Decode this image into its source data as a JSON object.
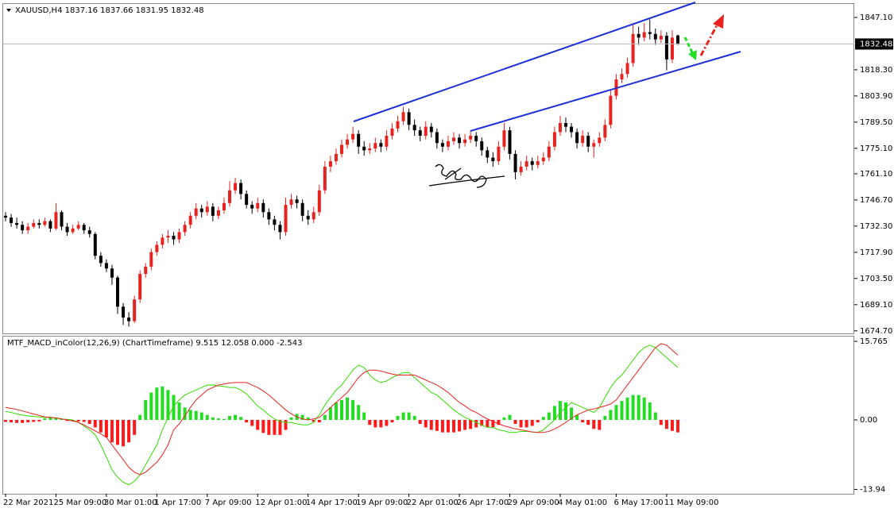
{
  "chart_data": [
    {
      "type": "candlestick",
      "title": "XAUUSD,H4  1837.16 1837.66 1831.95 1832.48",
      "up_color": "#e8231f",
      "down_color": "#000000",
      "ylim": [
        1673.3,
        1854.5
      ],
      "yticks": [
        {
          "value": 1847.1,
          "label": "1847.10"
        },
        {
          "value": 1818.3,
          "label": "1818.30"
        },
        {
          "value": 1803.9,
          "label": "1803.90"
        },
        {
          "value": 1789.5,
          "label": "1789.50"
        },
        {
          "value": 1775.1,
          "label": "1775.10"
        },
        {
          "value": 1761.1,
          "label": "1761.10"
        },
        {
          "value": 1746.7,
          "label": "1746.70"
        },
        {
          "value": 1732.3,
          "label": "1732.30"
        },
        {
          "value": 1717.9,
          "label": "1717.90"
        },
        {
          "value": 1703.5,
          "label": "1703.50"
        },
        {
          "value": 1689.1,
          "label": "1689.10"
        },
        {
          "value": 1674.7,
          "label": "1674.70"
        }
      ],
      "categories": [
        "22 Mar 2021",
        null,
        null,
        null,
        null,
        null,
        null,
        null,
        null,
        "25 Mar 09:00",
        null,
        null,
        null,
        null,
        null,
        null,
        null,
        null,
        "30 Mar 01:00",
        null,
        null,
        null,
        null,
        null,
        null,
        null,
        null,
        "1 Apr 17:00",
        null,
        null,
        null,
        null,
        null,
        null,
        null,
        null,
        "7 Apr 09:00",
        null,
        null,
        null,
        null,
        null,
        null,
        null,
        null,
        "12 Apr 01:00",
        null,
        null,
        null,
        null,
        null,
        null,
        null,
        null,
        "14 Apr 17:00",
        null,
        null,
        null,
        null,
        null,
        null,
        null,
        null,
        "19 Apr 09:00",
        null,
        null,
        null,
        null,
        null,
        null,
        null,
        null,
        "22 Apr 01:00",
        null,
        null,
        null,
        null,
        null,
        null,
        null,
        null,
        "26 Apr 17:00",
        null,
        null,
        null,
        null,
        null,
        null,
        null,
        null,
        "29 Apr 09:00",
        null,
        null,
        null,
        null,
        null,
        null,
        null,
        null,
        "4 May 01:00",
        null,
        null,
        null,
        null,
        null,
        null,
        null,
        null,
        null,
        "6 May 17:00",
        null,
        null,
        null,
        null,
        null,
        null,
        null,
        null,
        "11 May 09:00",
        null,
        null
      ],
      "ohlc": [
        [
          1738,
          1740,
          1735,
          1737
        ],
        [
          1737,
          1739,
          1732,
          1734
        ],
        [
          1734,
          1737,
          1731,
          1733
        ],
        [
          1733,
          1735,
          1728,
          1730
        ],
        [
          1730,
          1734,
          1728,
          1732
        ],
        [
          1732,
          1736,
          1731,
          1734
        ],
        [
          1734,
          1736,
          1731,
          1733
        ],
        [
          1733,
          1737,
          1732,
          1735
        ],
        [
          1735,
          1736,
          1729,
          1731
        ],
        [
          1731,
          1745,
          1730,
          1740
        ],
        [
          1740,
          1741,
          1730,
          1732
        ],
        [
          1732,
          1734,
          1727,
          1729
        ],
        [
          1729,
          1733,
          1728,
          1731
        ],
        [
          1731,
          1735,
          1730,
          1733
        ],
        [
          1733,
          1734,
          1728,
          1730
        ],
        [
          1730,
          1732,
          1726,
          1728
        ],
        [
          1728,
          1729,
          1714,
          1716
        ],
        [
          1716,
          1718,
          1710,
          1712
        ],
        [
          1712,
          1714,
          1707,
          1709
        ],
        [
          1709,
          1711,
          1700,
          1704
        ],
        [
          1704,
          1705,
          1684,
          1688
        ],
        [
          1688,
          1690,
          1678,
          1682
        ],
        [
          1682,
          1685,
          1677,
          1680
        ],
        [
          1680,
          1694,
          1679,
          1692
        ],
        [
          1692,
          1708,
          1690,
          1706
        ],
        [
          1706,
          1712,
          1704,
          1710
        ],
        [
          1710,
          1720,
          1708,
          1718
        ],
        [
          1718,
          1724,
          1716,
          1722
        ],
        [
          1722,
          1728,
          1720,
          1726
        ],
        [
          1726,
          1730,
          1723,
          1727
        ],
        [
          1727,
          1729,
          1722,
          1725
        ],
        [
          1725,
          1731,
          1723,
          1729
        ],
        [
          1729,
          1735,
          1727,
          1733
        ],
        [
          1733,
          1740,
          1731,
          1738
        ],
        [
          1738,
          1745,
          1736,
          1742
        ],
        [
          1742,
          1744,
          1737,
          1740
        ],
        [
          1740,
          1746,
          1738,
          1743
        ],
        [
          1743,
          1745,
          1735,
          1738
        ],
        [
          1738,
          1743,
          1736,
          1741
        ],
        [
          1741,
          1748,
          1739,
          1745
        ],
        [
          1745,
          1757,
          1743,
          1752
        ],
        [
          1752,
          1759,
          1750,
          1756
        ],
        [
          1756,
          1758,
          1747,
          1750
        ],
        [
          1750,
          1752,
          1742,
          1744
        ],
        [
          1744,
          1746,
          1739,
          1742
        ],
        [
          1742,
          1748,
          1740,
          1745
        ],
        [
          1745,
          1747,
          1737,
          1740
        ],
        [
          1740,
          1742,
          1733,
          1736
        ],
        [
          1736,
          1738,
          1730,
          1733
        ],
        [
          1733,
          1735,
          1725,
          1729
        ],
        [
          1729,
          1748,
          1727,
          1744
        ],
        [
          1744,
          1750,
          1742,
          1747
        ],
        [
          1747,
          1749,
          1742,
          1745
        ],
        [
          1745,
          1747,
          1735,
          1738
        ],
        [
          1738,
          1741,
          1733,
          1736
        ],
        [
          1736,
          1743,
          1734,
          1740
        ],
        [
          1740,
          1755,
          1738,
          1752
        ],
        [
          1752,
          1768,
          1750,
          1765
        ],
        [
          1765,
          1771,
          1762,
          1768
        ],
        [
          1768,
          1775,
          1766,
          1772
        ],
        [
          1772,
          1780,
          1770,
          1777
        ],
        [
          1777,
          1783,
          1775,
          1780
        ],
        [
          1780,
          1787,
          1778,
          1783
        ],
        [
          1783,
          1785,
          1772,
          1776
        ],
        [
          1776,
          1779,
          1771,
          1774
        ],
        [
          1774,
          1778,
          1772,
          1775
        ],
        [
          1775,
          1781,
          1773,
          1778
        ],
        [
          1778,
          1780,
          1773,
          1776
        ],
        [
          1776,
          1785,
          1774,
          1782
        ],
        [
          1782,
          1789,
          1780,
          1786
        ],
        [
          1786,
          1793,
          1784,
          1790
        ],
        [
          1790,
          1798,
          1788,
          1795
        ],
        [
          1795,
          1797,
          1785,
          1788
        ],
        [
          1788,
          1791,
          1782,
          1785
        ],
        [
          1785,
          1787,
          1779,
          1782
        ],
        [
          1782,
          1790,
          1780,
          1787
        ],
        [
          1787,
          1789,
          1781,
          1784
        ],
        [
          1784,
          1786,
          1775,
          1778
        ],
        [
          1778,
          1780,
          1773,
          1776
        ],
        [
          1776,
          1782,
          1774,
          1779
        ],
        [
          1779,
          1784,
          1777,
          1781
        ],
        [
          1781,
          1783,
          1775,
          1778
        ],
        [
          1778,
          1783,
          1776,
          1780
        ],
        [
          1780,
          1785,
          1778,
          1782
        ],
        [
          1782,
          1784,
          1776,
          1779
        ],
        [
          1779,
          1781,
          1771,
          1774
        ],
        [
          1774,
          1776,
          1767,
          1770
        ],
        [
          1770,
          1773,
          1765,
          1768
        ],
        [
          1768,
          1779,
          1766,
          1776
        ],
        [
          1776,
          1789,
          1774,
          1785
        ],
        [
          1785,
          1787,
          1769,
          1772
        ],
        [
          1772,
          1774,
          1758,
          1762
        ],
        [
          1762,
          1768,
          1760,
          1765
        ],
        [
          1765,
          1771,
          1763,
          1768
        ],
        [
          1768,
          1770,
          1763,
          1766
        ],
        [
          1766,
          1771,
          1764,
          1768
        ],
        [
          1768,
          1773,
          1766,
          1770
        ],
        [
          1770,
          1779,
          1768,
          1776
        ],
        [
          1776,
          1787,
          1774,
          1784
        ],
        [
          1784,
          1793,
          1782,
          1789
        ],
        [
          1789,
          1792,
          1784,
          1787
        ],
        [
          1787,
          1789,
          1781,
          1784
        ],
        [
          1784,
          1786,
          1775,
          1778
        ],
        [
          1778,
          1785,
          1776,
          1782
        ],
        [
          1782,
          1784,
          1773,
          1776
        ],
        [
          1776,
          1780,
          1770,
          1778
        ],
        [
          1778,
          1784,
          1776,
          1781
        ],
        [
          1781,
          1791,
          1779,
          1788
        ],
        [
          1788,
          1807,
          1786,
          1804
        ],
        [
          1804,
          1816,
          1802,
          1813
        ],
        [
          1813,
          1819,
          1811,
          1816
        ],
        [
          1816,
          1825,
          1814,
          1822
        ],
        [
          1822,
          1843,
          1820,
          1838
        ],
        [
          1838,
          1842,
          1832,
          1836
        ],
        [
          1836,
          1844,
          1834,
          1839
        ],
        [
          1839,
          1846,
          1835,
          1838
        ],
        [
          1838,
          1841,
          1832,
          1835
        ],
        [
          1835,
          1840,
          1833,
          1837
        ],
        [
          1837,
          1839,
          1818,
          1824
        ],
        [
          1824,
          1840,
          1822,
          1836
        ],
        [
          1837.16,
          1837.66,
          1831.95,
          1832.48
        ]
      ]
    },
    {
      "type": "macd",
      "title": "MTF_MACD_inColor(12,26,9) (ChartTimeframe) 9.515 12.058 0.000 -2.543",
      "ylim": [
        -14.81,
        16.56
      ],
      "yticks": [
        15.765,
        {
          "value": 0,
          "label": "0.00"
        },
        -13.94
      ],
      "series": [
        {
          "color": "#33dd00",
          "values": [
            1.7,
            1.5,
            1.2,
            1.0,
            0.8,
            0.7,
            0.6,
            0.5,
            0.5,
            0.4,
            0.2,
            0.1,
            0.0,
            -0.5,
            -1.2,
            -2.0,
            -3.0,
            -5.0,
            -7.5,
            -10.0,
            -11.5,
            -12.5,
            -13.0,
            -12.3,
            -11.0,
            -9.0,
            -7.0,
            -5.0,
            -2.0,
            0.5,
            2.8,
            4.0,
            5.0,
            5.5,
            6.0,
            6.5,
            7.0,
            7.0,
            6.8,
            6.7,
            6.5,
            6.5,
            6.0,
            5.2,
            4.0,
            2.8,
            2.0,
            1.0,
            0.2,
            -0.3,
            -0.5,
            -0.5,
            -0.8,
            -1.0,
            -1.0,
            -0.5,
            1.0,
            3.0,
            4.5,
            6.0,
            7.0,
            8.5,
            10.0,
            11.0,
            10.5,
            9.0,
            8.0,
            7.5,
            7.8,
            8.5,
            9.0,
            9.5,
            9.5,
            8.5,
            7.5,
            6.5,
            5.5,
            5.0,
            4.0,
            3.0,
            2.0,
            1.2,
            0.5,
            0.0,
            -0.5,
            -1.0,
            -1.5,
            -1.5,
            -2.0,
            -2.2,
            -2.5,
            -2.5,
            -2.3,
            -2.3,
            -2.4,
            -2.5,
            -2.0,
            -1.0,
            0.0,
            1.5,
            2.5,
            3.5,
            3.0,
            2.5,
            2.0,
            1.5,
            2.5,
            4.5,
            6.5,
            8.0,
            9.0,
            10.5,
            12.0,
            13.5,
            14.5,
            15.0,
            14.5,
            13.5,
            12.5,
            11.5,
            10.5
          ]
        },
        {
          "color": "#e8231f",
          "values": [
            2.5,
            2.3,
            2.1,
            1.8,
            1.5,
            1.2,
            0.9,
            0.6,
            0.5,
            0.4,
            0.2,
            0.0,
            -0.2,
            -0.5,
            -1.0,
            -1.6,
            -2.2,
            -2.8,
            -3.5,
            -5.0,
            -6.5,
            -8.0,
            -9.5,
            -10.5,
            -11.0,
            -10.5,
            -9.5,
            -8.5,
            -7.0,
            -5.0,
            -2.0,
            -0.8,
            0.8,
            2.5,
            4.0,
            5.0,
            6.0,
            6.5,
            7.0,
            7.2,
            7.4,
            7.5,
            7.5,
            7.5,
            7.0,
            6.5,
            5.8,
            5.0,
            4.0,
            3.0,
            2.0,
            1.2,
            0.6,
            0.2,
            0.0,
            0.2,
            0.5,
            1.5,
            2.5,
            3.5,
            4.5,
            5.5,
            7.0,
            8.5,
            9.5,
            10.0,
            10.0,
            9.8,
            9.5,
            9.2,
            9.0,
            9.0,
            9.0,
            9.0,
            8.5,
            8.0,
            7.5,
            7.0,
            6.3,
            5.5,
            4.5,
            3.5,
            2.8,
            2.0,
            1.5,
            0.8,
            0.2,
            -0.3,
            -0.8,
            -1.2,
            -1.5,
            -1.8,
            -2.0,
            -2.2,
            -2.4,
            -2.5,
            -2.5,
            -2.3,
            -1.8,
            -1.2,
            -0.5,
            0.3,
            1.0,
            1.5,
            2.0,
            2.2,
            2.5,
            2.8,
            3.2,
            4.0,
            5.5,
            7.0,
            8.5,
            10.0,
            11.5,
            13.0,
            14.5,
            15.3,
            15.0,
            14.0,
            13.0
          ]
        }
      ],
      "histogram": {
        "color_positive": "#22dd22",
        "color_negative": "#ff1a1a",
        "values": [
          -0.4,
          -0.5,
          -0.6,
          -0.6,
          -0.5,
          -0.4,
          -0.3,
          0.3,
          0.6,
          0.5,
          0.2,
          -0.2,
          -0.3,
          -0.3,
          -0.4,
          -0.8,
          -1.5,
          -2.5,
          -3.5,
          -4.5,
          -5.0,
          -5.3,
          -4.5,
          -3.0,
          1.0,
          4.0,
          5.5,
          6.5,
          6.7,
          6.0,
          5.0,
          3.5,
          2.5,
          2.0,
          1.8,
          1.5,
          1.0,
          0.5,
          0.3,
          0.2,
          0.8,
          1.0,
          0.6,
          -0.5,
          -1.2,
          -2.0,
          -2.6,
          -3.0,
          -3.0,
          -3.0,
          -2.0,
          0.5,
          1.2,
          1.0,
          0.5,
          -0.4,
          -0.5,
          1.0,
          2.5,
          3.5,
          4.0,
          4.5,
          4.0,
          3.0,
          1.5,
          -1.0,
          -1.5,
          -1.5,
          -1.2,
          -0.5,
          0.8,
          1.5,
          1.5,
          0.8,
          -0.8,
          -1.5,
          -2.0,
          -2.2,
          -2.5,
          -2.5,
          -2.5,
          -2.3,
          -2.0,
          -1.8,
          -1.5,
          -1.2,
          -1.5,
          -1.5,
          -1.0,
          0.5,
          1.0,
          -0.8,
          -1.5,
          -1.5,
          -1.2,
          -0.5,
          0.6,
          1.5,
          2.8,
          3.8,
          3.5,
          2.5,
          1.0,
          -0.5,
          -1.0,
          -1.8,
          -2.0,
          0.8,
          2.0,
          3.0,
          3.8,
          4.5,
          5.0,
          5.0,
          4.5,
          3.5,
          1.5,
          -1.0,
          -1.8,
          -2.2,
          -2.5
        ]
      }
    }
  ]
}
